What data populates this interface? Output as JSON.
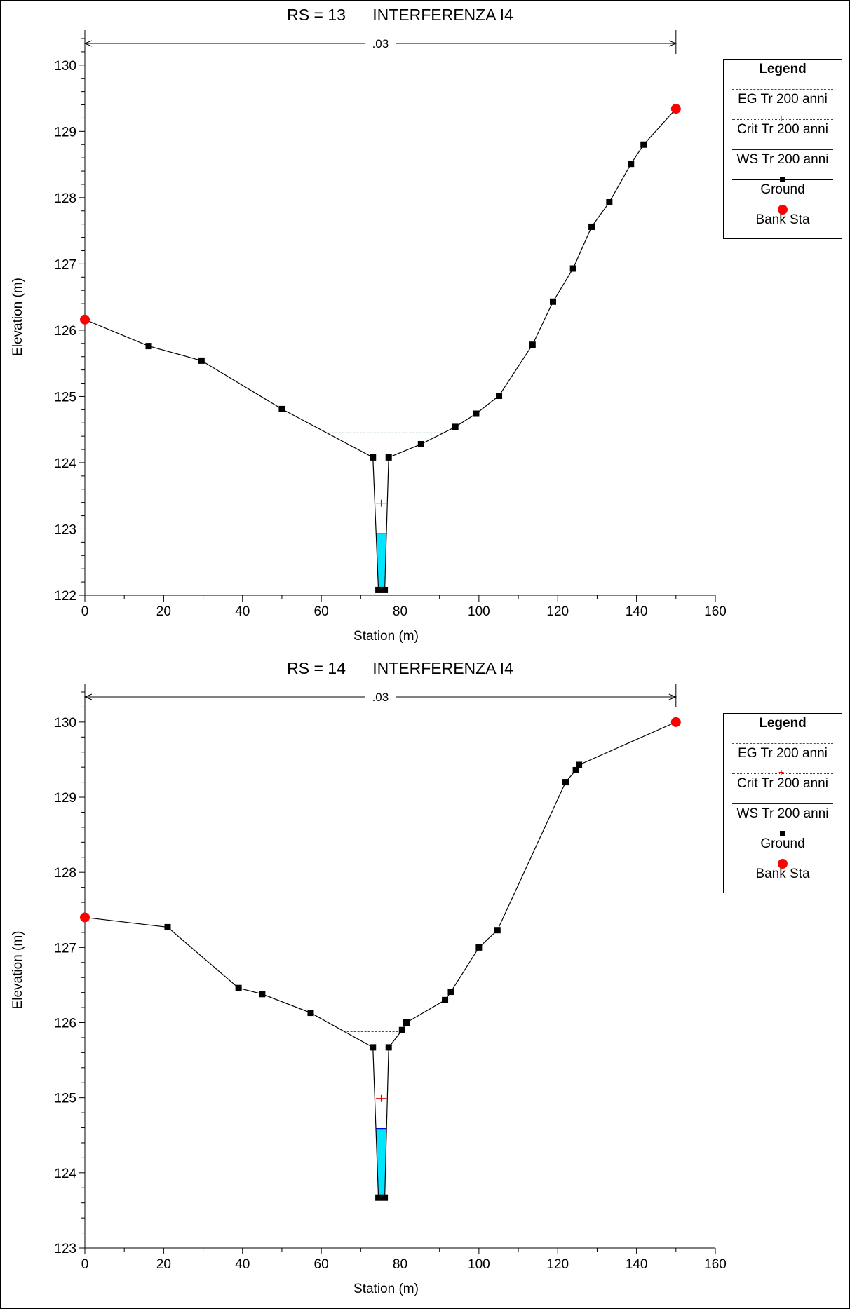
{
  "charts": [
    {
      "title": "RS = 13      INTERFERENZA I4",
      "xlabel": "Station (m)",
      "ylabel": "Elevation (m)",
      "x_ticks": [
        "0",
        "20",
        "40",
        "60",
        "80",
        "100",
        "120",
        "140",
        "160"
      ],
      "y_ticks": [
        "122",
        "123",
        "124",
        "125",
        "126",
        "127",
        "128",
        "129",
        "130"
      ],
      "manning_label": ".03",
      "legend": {
        "title": "Legend",
        "items": [
          "EG Tr 200 anni",
          "Crit Tr 200 anni",
          "WS Tr 200 anni",
          "Ground",
          "Bank Sta"
        ]
      }
    },
    {
      "title": "RS = 14      INTERFERENZA I4",
      "xlabel": "Station (m)",
      "ylabel": "Elevation (m)",
      "x_ticks": [
        "0",
        "20",
        "40",
        "60",
        "80",
        "100",
        "120",
        "140",
        "160"
      ],
      "y_ticks": [
        "123",
        "124",
        "125",
        "126",
        "127",
        "128",
        "129",
        "130"
      ],
      "manning_label": ".03",
      "legend": {
        "title": "Legend",
        "items": [
          "EG Tr 200 anni",
          "Crit Tr 200 anni",
          "WS Tr 200 anni",
          "Ground",
          "Bank Sta"
        ]
      }
    }
  ],
  "colors": {
    "eg": "#008000",
    "crit": "#e00000",
    "ws": "#0000ff",
    "water_fill": "#00e5ff",
    "ground": "#000000",
    "bank": "#ff0000"
  },
  "chart_data": [
    {
      "type": "line",
      "title": "RS = 13      INTERFERENZA I4",
      "xlabel": "Station (m)",
      "ylabel": "Elevation (m)",
      "xlim": [
        0,
        160
      ],
      "ylim": [
        122,
        130.4
      ],
      "grid": false,
      "legend_position": "right",
      "manning_n": ".03",
      "manning_range": [
        0,
        150
      ],
      "series": [
        {
          "name": "Ground",
          "x": [
            0,
            16.2,
            29.6,
            50,
            73.1,
            74.5,
            76.1,
            77.1,
            85.3,
            94.0,
            99.3,
            105.1,
            113.6,
            118.8,
            123.9,
            128.6,
            133.1,
            138.6,
            141.8,
            150
          ],
          "y": [
            126.16,
            125.76,
            125.54,
            124.81,
            124.08,
            122.08,
            122.08,
            124.08,
            124.28,
            124.54,
            124.74,
            125.01,
            125.78,
            126.43,
            126.93,
            127.56,
            127.93,
            128.51,
            128.8,
            129.34
          ]
        },
        {
          "name": "EG Tr 200 anni",
          "x": [
            61.8,
            91.0
          ],
          "y": [
            124.45,
            124.45
          ]
        },
        {
          "name": "Crit Tr 200 anni",
          "x": [
            73.8,
            75.2,
            76.6
          ],
          "y": [
            123.39,
            123.39,
            123.39
          ]
        },
        {
          "name": "WS Tr 200 anni",
          "x": [
            73.9,
            76.4
          ],
          "y": [
            122.93,
            122.93
          ]
        },
        {
          "name": "Bank Sta",
          "x": [
            0,
            150
          ],
          "y": [
            126.16,
            129.34
          ]
        }
      ]
    },
    {
      "type": "line",
      "title": "RS = 14      INTERFERENZA I4",
      "xlabel": "Station (m)",
      "ylabel": "Elevation (m)",
      "xlim": [
        0,
        160
      ],
      "ylim": [
        123,
        130.4
      ],
      "grid": false,
      "legend_position": "right",
      "manning_n": ".03",
      "manning_range": [
        0,
        150
      ],
      "series": [
        {
          "name": "Ground",
          "x": [
            0,
            21.0,
            39.0,
            45.0,
            57.3,
            73.1,
            74.5,
            76.1,
            77.1,
            80.5,
            81.6,
            91.4,
            92.9,
            100.0,
            104.7,
            122.0,
            124.6,
            125.4,
            150
          ],
          "y": [
            127.4,
            127.27,
            126.46,
            126.38,
            126.13,
            125.67,
            123.67,
            123.67,
            125.67,
            125.9,
            126.0,
            126.3,
            126.41,
            127.0,
            127.23,
            129.2,
            129.36,
            129.43,
            130.0
          ]
        },
        {
          "name": "EG Tr 200 anni",
          "x": [
            66.5,
            80.3
          ],
          "y": [
            125.88,
            125.88
          ]
        },
        {
          "name": "Crit Tr 200 anni",
          "x": [
            73.8,
            75.2,
            76.6
          ],
          "y": [
            124.99,
            124.99,
            124.99
          ]
        },
        {
          "name": "WS Tr 200 anni",
          "x": [
            73.9,
            76.4
          ],
          "y": [
            124.59,
            124.59
          ]
        },
        {
          "name": "Bank Sta",
          "x": [
            0,
            150
          ],
          "y": [
            127.4,
            130.0
          ]
        }
      ]
    }
  ]
}
